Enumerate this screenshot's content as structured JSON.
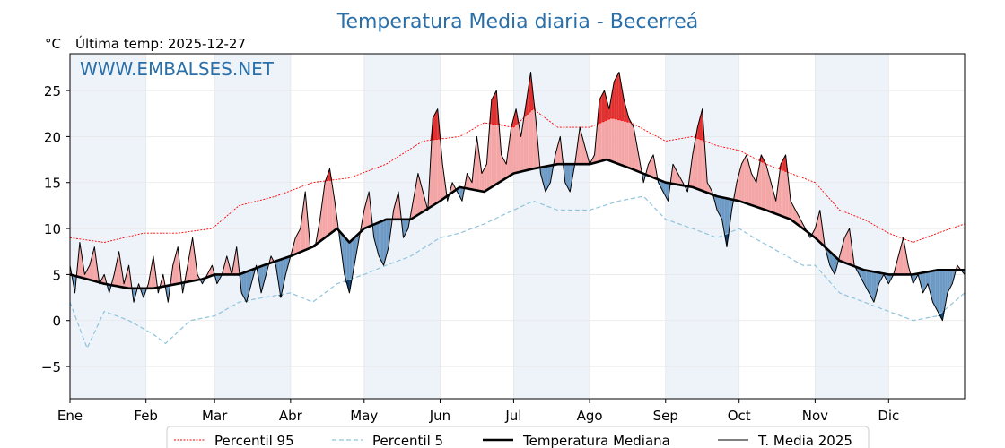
{
  "chart_data": {
    "type": "line",
    "title": "Temperatura Media diaria - Becerreá",
    "unit_label": "°C",
    "last_temp_label": "Última temp: 2025-12-27",
    "watermark": "WWW.EMBALSES.NET",
    "ylim": [
      -8.5,
      29
    ],
    "xlim_days": [
      1,
      366
    ],
    "yticks": [
      {
        "label": "25",
        "value": 25
      },
      {
        "label": "20",
        "value": 20
      },
      {
        "label": "15",
        "value": 15
      },
      {
        "label": "10",
        "value": 10
      },
      {
        "label": "5",
        "value": 5
      },
      {
        "label": "0",
        "value": 0
      },
      {
        "label": "−5",
        "value": -5
      }
    ],
    "months": [
      {
        "label": "Ene",
        "day": 1
      },
      {
        "label": "Feb",
        "day": 32
      },
      {
        "label": "Mar",
        "day": 60
      },
      {
        "label": "Abr",
        "day": 91
      },
      {
        "label": "May",
        "day": 121
      },
      {
        "label": "Jun",
        "day": 152
      },
      {
        "label": "Jul",
        "day": 182
      },
      {
        "label": "Ago",
        "day": 213
      },
      {
        "label": "Sep",
        "day": 244
      },
      {
        "label": "Oct",
        "day": 274
      },
      {
        "label": "Nov",
        "day": 305
      },
      {
        "label": "Dic",
        "day": 335
      }
    ],
    "grid": true,
    "legend_position": "bottom",
    "colors": {
      "p95": "#ff0000",
      "p5": "#8fc4dc",
      "median": "#000000",
      "media": "#000000",
      "above": "#f4a6a6",
      "above_extreme": "#e03030",
      "below": "#6d9ac4",
      "below_extreme": "#0b3d6e",
      "band": "#eef3fa",
      "title": "#2a6fa8"
    },
    "series": [
      {
        "name": "Percentil 95",
        "key": "p95",
        "points": [
          [
            1,
            9
          ],
          [
            15,
            8.5
          ],
          [
            31,
            9.5
          ],
          [
            45,
            9.5
          ],
          [
            59,
            10
          ],
          [
            70,
            12.5
          ],
          [
            85,
            13.5
          ],
          [
            100,
            15
          ],
          [
            115,
            15.5
          ],
          [
            130,
            17
          ],
          [
            145,
            19.5
          ],
          [
            160,
            20
          ],
          [
            170,
            21.5
          ],
          [
            182,
            21
          ],
          [
            190,
            23
          ],
          [
            200,
            21
          ],
          [
            213,
            21
          ],
          [
            222,
            22
          ],
          [
            230,
            21.5
          ],
          [
            244,
            19.5
          ],
          [
            255,
            20
          ],
          [
            265,
            19
          ],
          [
            274,
            18.5
          ],
          [
            285,
            17
          ],
          [
            295,
            16
          ],
          [
            305,
            15
          ],
          [
            315,
            12
          ],
          [
            325,
            11
          ],
          [
            335,
            9.5
          ],
          [
            345,
            8.5
          ],
          [
            355,
            9.5
          ],
          [
            366,
            10.5
          ]
        ]
      },
      {
        "name": "Percentil 5",
        "key": "p5",
        "points": [
          [
            1,
            2
          ],
          [
            8,
            -3
          ],
          [
            15,
            1
          ],
          [
            25,
            0
          ],
          [
            35,
            -1.5
          ],
          [
            40,
            -2.5
          ],
          [
            50,
            0
          ],
          [
            60,
            0.5
          ],
          [
            70,
            2
          ],
          [
            80,
            2.5
          ],
          [
            91,
            3
          ],
          [
            100,
            2
          ],
          [
            110,
            4
          ],
          [
            121,
            5
          ],
          [
            130,
            6
          ],
          [
            140,
            7
          ],
          [
            152,
            9
          ],
          [
            160,
            9.5
          ],
          [
            170,
            10.5
          ],
          [
            182,
            12
          ],
          [
            190,
            13
          ],
          [
            200,
            12
          ],
          [
            213,
            12
          ],
          [
            225,
            13
          ],
          [
            235,
            13.5
          ],
          [
            244,
            11
          ],
          [
            255,
            10
          ],
          [
            265,
            9
          ],
          [
            274,
            10
          ],
          [
            280,
            9
          ],
          [
            290,
            7.5
          ],
          [
            300,
            6
          ],
          [
            305,
            6
          ],
          [
            315,
            3
          ],
          [
            325,
            2
          ],
          [
            335,
            1
          ],
          [
            345,
            0
          ],
          [
            355,
            0.5
          ],
          [
            366,
            3
          ]
        ]
      },
      {
        "name": "Temperatura Mediana",
        "key": "median",
        "points": [
          [
            1,
            5
          ],
          [
            8,
            4.5
          ],
          [
            15,
            4
          ],
          [
            25,
            3.5
          ],
          [
            35,
            3.5
          ],
          [
            45,
            4
          ],
          [
            55,
            4.5
          ],
          [
            60,
            5
          ],
          [
            70,
            5
          ],
          [
            80,
            6
          ],
          [
            91,
            7
          ],
          [
            100,
            8
          ],
          [
            110,
            10
          ],
          [
            115,
            8.5
          ],
          [
            121,
            10
          ],
          [
            130,
            11
          ],
          [
            140,
            11
          ],
          [
            152,
            13
          ],
          [
            160,
            14.5
          ],
          [
            170,
            14
          ],
          [
            182,
            16
          ],
          [
            190,
            16.5
          ],
          [
            200,
            17
          ],
          [
            213,
            17
          ],
          [
            220,
            17.5
          ],
          [
            230,
            16.5
          ],
          [
            244,
            15
          ],
          [
            255,
            14.5
          ],
          [
            265,
            13.5
          ],
          [
            274,
            13
          ],
          [
            285,
            12
          ],
          [
            295,
            11
          ],
          [
            305,
            9
          ],
          [
            315,
            6.5
          ],
          [
            325,
            5.5
          ],
          [
            335,
            5
          ],
          [
            345,
            5
          ],
          [
            355,
            5.5
          ],
          [
            366,
            5.5
          ]
        ]
      },
      {
        "name": "T. Media 2025",
        "key": "media",
        "points": [
          [
            1,
            6
          ],
          [
            3,
            3
          ],
          [
            5,
            8.5
          ],
          [
            7,
            5
          ],
          [
            9,
            6
          ],
          [
            11,
            8
          ],
          [
            13,
            4
          ],
          [
            15,
            5
          ],
          [
            17,
            3
          ],
          [
            19,
            5
          ],
          [
            21,
            7.5
          ],
          [
            23,
            4
          ],
          [
            25,
            6
          ],
          [
            27,
            2
          ],
          [
            29,
            4
          ],
          [
            31,
            2.5
          ],
          [
            33,
            4
          ],
          [
            35,
            7
          ],
          [
            37,
            3
          ],
          [
            39,
            5
          ],
          [
            41,
            2
          ],
          [
            43,
            6
          ],
          [
            45,
            8
          ],
          [
            47,
            3
          ],
          [
            49,
            6
          ],
          [
            51,
            9
          ],
          [
            53,
            5
          ],
          [
            55,
            4
          ],
          [
            57,
            5
          ],
          [
            59,
            6
          ],
          [
            61,
            4
          ],
          [
            63,
            5
          ],
          [
            65,
            7
          ],
          [
            67,
            5
          ],
          [
            69,
            8
          ],
          [
            71,
            3
          ],
          [
            73,
            2
          ],
          [
            75,
            4
          ],
          [
            77,
            6
          ],
          [
            79,
            3
          ],
          [
            81,
            5
          ],
          [
            83,
            7
          ],
          [
            85,
            6
          ],
          [
            87,
            2.5
          ],
          [
            89,
            5
          ],
          [
            91,
            7
          ],
          [
            93,
            9
          ],
          [
            95,
            10
          ],
          [
            97,
            14
          ],
          [
            99,
            8
          ],
          [
            101,
            8
          ],
          [
            103,
            11
          ],
          [
            105,
            15
          ],
          [
            107,
            16.5
          ],
          [
            109,
            13
          ],
          [
            111,
            9
          ],
          [
            113,
            5
          ],
          [
            115,
            3
          ],
          [
            117,
            6
          ],
          [
            119,
            9
          ],
          [
            121,
            12
          ],
          [
            123,
            14
          ],
          [
            125,
            9
          ],
          [
            127,
            7
          ],
          [
            129,
            6
          ],
          [
            131,
            8
          ],
          [
            133,
            12
          ],
          [
            135,
            14
          ],
          [
            137,
            9
          ],
          [
            139,
            10
          ],
          [
            141,
            13
          ],
          [
            143,
            16
          ],
          [
            145,
            14
          ],
          [
            147,
            12
          ],
          [
            149,
            22
          ],
          [
            151,
            23
          ],
          [
            153,
            17
          ],
          [
            155,
            13
          ],
          [
            157,
            15
          ],
          [
            159,
            14
          ],
          [
            161,
            13
          ],
          [
            163,
            16
          ],
          [
            165,
            15
          ],
          [
            167,
            20
          ],
          [
            169,
            16
          ],
          [
            171,
            17
          ],
          [
            173,
            24
          ],
          [
            175,
            25
          ],
          [
            177,
            18
          ],
          [
            179,
            17
          ],
          [
            181,
            21
          ],
          [
            183,
            23
          ],
          [
            185,
            20
          ],
          [
            187,
            23.5
          ],
          [
            189,
            27
          ],
          [
            191,
            22
          ],
          [
            193,
            16
          ],
          [
            195,
            14
          ],
          [
            197,
            15
          ],
          [
            199,
            18
          ],
          [
            201,
            20
          ],
          [
            203,
            15
          ],
          [
            205,
            14
          ],
          [
            207,
            17
          ],
          [
            209,
            21
          ],
          [
            211,
            19
          ],
          [
            213,
            17
          ],
          [
            215,
            18
          ],
          [
            217,
            24
          ],
          [
            219,
            25
          ],
          [
            221,
            23
          ],
          [
            223,
            26
          ],
          [
            225,
            27
          ],
          [
            227,
            24
          ],
          [
            229,
            22
          ],
          [
            231,
            21
          ],
          [
            233,
            18
          ],
          [
            235,
            15
          ],
          [
            237,
            17
          ],
          [
            239,
            18
          ],
          [
            241,
            15
          ],
          [
            243,
            14
          ],
          [
            245,
            13
          ],
          [
            247,
            17
          ],
          [
            249,
            16
          ],
          [
            251,
            15
          ],
          [
            253,
            14
          ],
          [
            255,
            18
          ],
          [
            257,
            21
          ],
          [
            259,
            23
          ],
          [
            261,
            15
          ],
          [
            263,
            14
          ],
          [
            265,
            12
          ],
          [
            267,
            11
          ],
          [
            269,
            8
          ],
          [
            271,
            12
          ],
          [
            273,
            15
          ],
          [
            275,
            17
          ],
          [
            277,
            18
          ],
          [
            279,
            16
          ],
          [
            281,
            15
          ],
          [
            283,
            18
          ],
          [
            285,
            17
          ],
          [
            287,
            15
          ],
          [
            289,
            13
          ],
          [
            291,
            17
          ],
          [
            293,
            18
          ],
          [
            295,
            13
          ],
          [
            297,
            12
          ],
          [
            299,
            11
          ],
          [
            301,
            10
          ],
          [
            303,
            9
          ],
          [
            305,
            10
          ],
          [
            307,
            12
          ],
          [
            309,
            8
          ],
          [
            311,
            6
          ],
          [
            313,
            5
          ],
          [
            315,
            7
          ],
          [
            317,
            9
          ],
          [
            319,
            10
          ],
          [
            321,
            6
          ],
          [
            323,
            5
          ],
          [
            325,
            4
          ],
          [
            327,
            3
          ],
          [
            329,
            2
          ],
          [
            331,
            4
          ],
          [
            333,
            5
          ],
          [
            335,
            4
          ],
          [
            337,
            5
          ],
          [
            339,
            7
          ],
          [
            341,
            9
          ],
          [
            343,
            6
          ],
          [
            345,
            4
          ],
          [
            347,
            5
          ],
          [
            349,
            3
          ],
          [
            351,
            4
          ],
          [
            353,
            2
          ],
          [
            355,
            1
          ],
          [
            357,
            0
          ],
          [
            359,
            3
          ],
          [
            361,
            4
          ],
          [
            363,
            6
          ],
          [
            366,
            5
          ]
        ]
      }
    ]
  },
  "legend": {
    "items": [
      {
        "label": "Percentil 95",
        "key": "p95"
      },
      {
        "label": "Percentil 5",
        "key": "p5"
      },
      {
        "label": "Temperatura Mediana",
        "key": "median"
      },
      {
        "label": "T. Media 2025",
        "key": "media"
      }
    ]
  }
}
